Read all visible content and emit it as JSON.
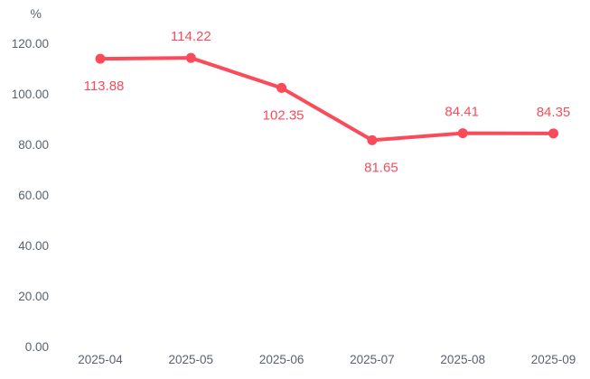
{
  "page": {
    "background": "#ffffff"
  },
  "chart_data": {
    "type": "line",
    "title": "",
    "xlabel": "",
    "ylabel": "%",
    "unit_label": "%",
    "categories": [
      "2025-04",
      "2025-05",
      "2025-06",
      "2025-07",
      "2025-08",
      "2025-09"
    ],
    "values": [
      113.88,
      114.22,
      102.35,
      81.65,
      84.41,
      84.35
    ],
    "data_labels": [
      "113.88",
      "114.22",
      "102.35",
      "81.65",
      "84.41",
      "84.35"
    ],
    "label_positions": [
      "below",
      "above",
      "below",
      "below",
      "above",
      "above"
    ],
    "label_dx": [
      4,
      0,
      2,
      10,
      -1,
      0
    ],
    "y_ticks": [
      "0.00",
      "20.00",
      "40.00",
      "60.00",
      "80.00",
      "100.00",
      "120.00"
    ],
    "ylim": [
      0,
      120
    ],
    "grid": "off",
    "legend": "none",
    "axis_lines": "off",
    "colors": {
      "line": "#fa4b5b",
      "point": "#fa4b5b",
      "data_label": "#fa4b5b",
      "axis_label": "#5a6270",
      "background": "#ffffff"
    }
  }
}
